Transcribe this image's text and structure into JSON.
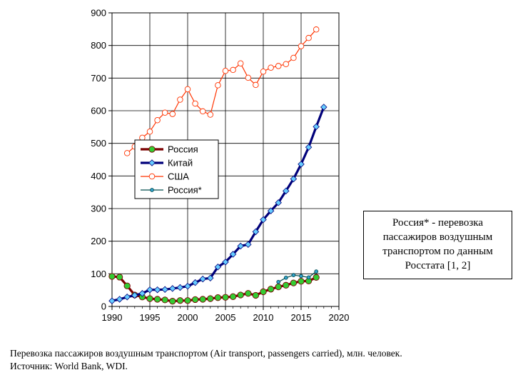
{
  "chart_data": {
    "type": "line",
    "xlim": [
      1990,
      2020
    ],
    "ylim": [
      0,
      900
    ],
    "x_ticks": [
      "1990",
      "1995",
      "2000",
      "2005",
      "2010",
      "2015",
      "2020"
    ],
    "y_ticks": [
      "0",
      "100",
      "200",
      "300",
      "400",
      "500",
      "600",
      "700",
      "800",
      "900"
    ],
    "grid": true,
    "legend_position": "left-middle",
    "series": [
      {
        "name": "Россия",
        "color": "#7b0000",
        "marker_color": "#33cc33",
        "marker": "circle",
        "x": [
          1990,
          1991,
          1992,
          1993,
          1994,
          1995,
          1996,
          1997,
          1998,
          1999,
          2000,
          2001,
          2002,
          2003,
          2004,
          2005,
          2006,
          2007,
          2008,
          2009,
          2010,
          2011,
          2012,
          2013,
          2014,
          2015,
          2016,
          2017
        ],
        "y": [
          92,
          90,
          63,
          35,
          29,
          24,
          22,
          20,
          16,
          18,
          18,
          21,
          22,
          24,
          27,
          28,
          30,
          35,
          40,
          34,
          45,
          53,
          60,
          65,
          72,
          77,
          78,
          89
        ]
      },
      {
        "name": "Китай",
        "color": "#00007a",
        "marker_color": "#66ccff",
        "marker": "diamond",
        "x": [
          1990,
          1991,
          1992,
          1993,
          1994,
          1995,
          1996,
          1997,
          1998,
          1999,
          2000,
          2001,
          2002,
          2003,
          2004,
          2005,
          2006,
          2007,
          2008,
          2009,
          2010,
          2011,
          2012,
          2013,
          2014,
          2015,
          2016,
          2017,
          2018
        ],
        "y": [
          17,
          22,
          29,
          34,
          40,
          51,
          51,
          52,
          55,
          58,
          62,
          73,
          84,
          87,
          121,
          136,
          160,
          185,
          190,
          229,
          266,
          293,
          318,
          354,
          391,
          436,
          488,
          551,
          611
        ]
      },
      {
        "name": "США",
        "color": "#ff3300",
        "marker_color": "#ffffff",
        "marker": "circle",
        "x": [
          1992,
          1993,
          1994,
          1995,
          1996,
          1997,
          1998,
          1999,
          2000,
          2001,
          2002,
          2003,
          2004,
          2005,
          2006,
          2007,
          2008,
          2009,
          2010,
          2011,
          2012,
          2013,
          2014,
          2015,
          2016,
          2017
        ],
        "y": [
          470,
          490,
          517,
          536,
          571,
          594,
          590,
          634,
          666,
          622,
          598,
          588,
          678,
          722,
          725,
          745,
          701,
          679,
          720,
          732,
          737,
          743,
          762,
          798,
          823,
          849
        ]
      },
      {
        "name": "Россия*",
        "color": "#004c4c",
        "marker_color": "#33a0cc",
        "marker": "circle",
        "x": [
          2012,
          2013,
          2014,
          2015,
          2016,
          2017
        ],
        "y": [
          75,
          88,
          96,
          93,
          89,
          107
        ]
      }
    ]
  },
  "note": {
    "lines": [
      "Россия* - перевозка",
      "пассажиров воздушным",
      "транспортом по данным",
      "Росстата [1, 2]"
    ]
  },
  "caption": {
    "line1": "Перевозка пассажиров воздушным транспортом (Air transport, passengers carried), млн. человек.",
    "line2": "Источник:  World Bank,  WDI."
  }
}
